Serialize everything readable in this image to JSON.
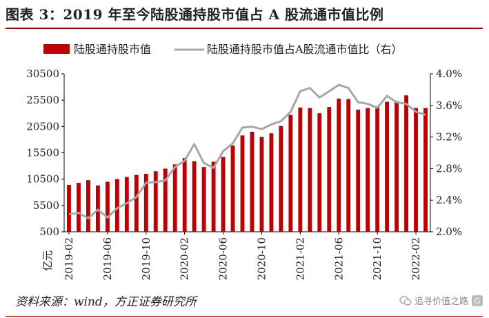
{
  "title": "图表 3：2019 年至今陆股通持股市值占 A 股流通市值比例",
  "source": "资料来源：wind，方正证券研究所",
  "watermark": "追寻价值之路",
  "colors": {
    "bar": "#c00000",
    "line": "#a6a6a6",
    "rule": "#c00000"
  },
  "chart_data": {
    "type": "bar+line",
    "ylabel": "亿元",
    "y_left": {
      "min": 500,
      "max": 30500,
      "ticks": [
        500,
        5500,
        10500,
        15500,
        20500,
        25500,
        30500
      ]
    },
    "y_right": {
      "min": 2.0,
      "max": 4.0,
      "ticks": [
        "2.0%",
        "2.4%",
        "2.8%",
        "3.2%",
        "3.6%",
        "4.0%"
      ],
      "tick_values": [
        2.0,
        2.4,
        2.8,
        3.2,
        3.6,
        4.0
      ]
    },
    "x_tick_labels": [
      "2019-02",
      "2019-06",
      "2019-10",
      "2020-02",
      "2020-06",
      "2020-10",
      "2021-02",
      "2021-06",
      "2021-10",
      "2022-02"
    ],
    "x_tick_index": [
      0,
      4,
      8,
      12,
      16,
      20,
      24,
      28,
      32,
      36
    ],
    "legend": [
      "陆股通持股市值",
      "陆股通持股市值占A股流通市值比（右）"
    ],
    "series": [
      {
        "name": "陆股通持股市值",
        "axis": "left",
        "type": "bar",
        "values": [
          9400,
          9800,
          10300,
          9300,
          10000,
          10500,
          10900,
          11300,
          11500,
          12000,
          12500,
          13300,
          14500,
          13900,
          12800,
          13800,
          14700,
          16900,
          18800,
          19500,
          18500,
          19200,
          20600,
          22700,
          24100,
          24000,
          23000,
          24200,
          25800,
          25700,
          23700,
          24000,
          24300,
          25200,
          25300,
          26400,
          24000,
          24000
        ]
      },
      {
        "name": "陆股通持股市值占A股流通市值比（右）",
        "axis": "right",
        "type": "line",
        "values": [
          2.22,
          2.24,
          2.17,
          2.28,
          2.18,
          2.3,
          2.36,
          2.44,
          2.62,
          2.63,
          2.65,
          2.82,
          2.9,
          3.11,
          2.87,
          2.81,
          3.02,
          3.12,
          3.32,
          3.33,
          3.3,
          3.36,
          3.4,
          3.52,
          3.78,
          3.82,
          3.7,
          3.78,
          3.86,
          3.82,
          3.64,
          3.62,
          3.57,
          3.72,
          3.64,
          3.62,
          3.52,
          3.48
        ]
      }
    ]
  }
}
